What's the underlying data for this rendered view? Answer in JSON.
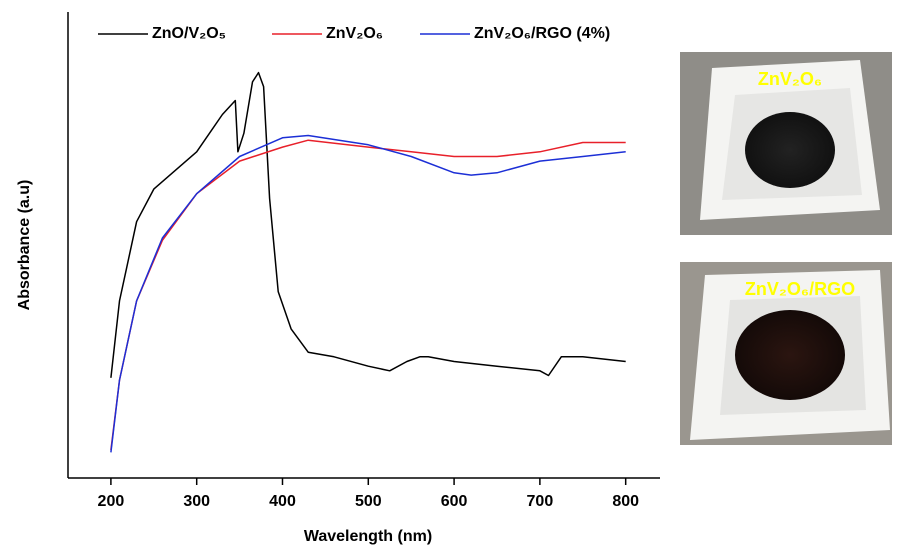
{
  "chart_data": {
    "type": "line",
    "xlabel": "Wavelength (nm)",
    "ylabel": "Absorbance (a.u)",
    "xlim": [
      150,
      840
    ],
    "ylim": [
      0,
      1
    ],
    "xticks": [
      200,
      300,
      400,
      500,
      600,
      700,
      800
    ],
    "series": [
      {
        "name": "ZnO/V₂O₅",
        "color": "#000000",
        "x": [
          200,
          210,
          230,
          250,
          300,
          330,
          345,
          348,
          355,
          365,
          372,
          378,
          385,
          395,
          410,
          430,
          460,
          500,
          525,
          545,
          560,
          570,
          600,
          650,
          700,
          710,
          725,
          750,
          800
        ],
        "values": [
          0.215,
          0.38,
          0.55,
          0.62,
          0.7,
          0.78,
          0.81,
          0.7,
          0.74,
          0.85,
          0.87,
          0.84,
          0.6,
          0.4,
          0.32,
          0.27,
          0.26,
          0.24,
          0.23,
          0.25,
          0.26,
          0.26,
          0.25,
          0.24,
          0.23,
          0.22,
          0.26,
          0.26,
          0.25
        ]
      },
      {
        "name": "ZnV₂O₆",
        "color": "#e8202a",
        "x": [
          200,
          210,
          230,
          260,
          300,
          350,
          400,
          430,
          500,
          550,
          600,
          650,
          700,
          750,
          800
        ],
        "values": [
          0.06,
          0.21,
          0.38,
          0.51,
          0.61,
          0.68,
          0.71,
          0.725,
          0.71,
          0.7,
          0.69,
          0.69,
          0.7,
          0.72,
          0.72
        ]
      },
      {
        "name": "ZnV₂O₆/RGO (4%)",
        "color": "#1c2fd6",
        "x": [
          200,
          210,
          230,
          260,
          300,
          350,
          400,
          430,
          500,
          550,
          600,
          620,
          650,
          700,
          750,
          800
        ],
        "values": [
          0.055,
          0.21,
          0.38,
          0.515,
          0.61,
          0.69,
          0.73,
          0.735,
          0.715,
          0.69,
          0.655,
          0.65,
          0.655,
          0.68,
          0.69,
          0.7
        ]
      }
    ]
  },
  "photos": [
    {
      "label": "ZnV₂O₆"
    },
    {
      "label": "ZnV₂O₆/RGO"
    }
  ]
}
